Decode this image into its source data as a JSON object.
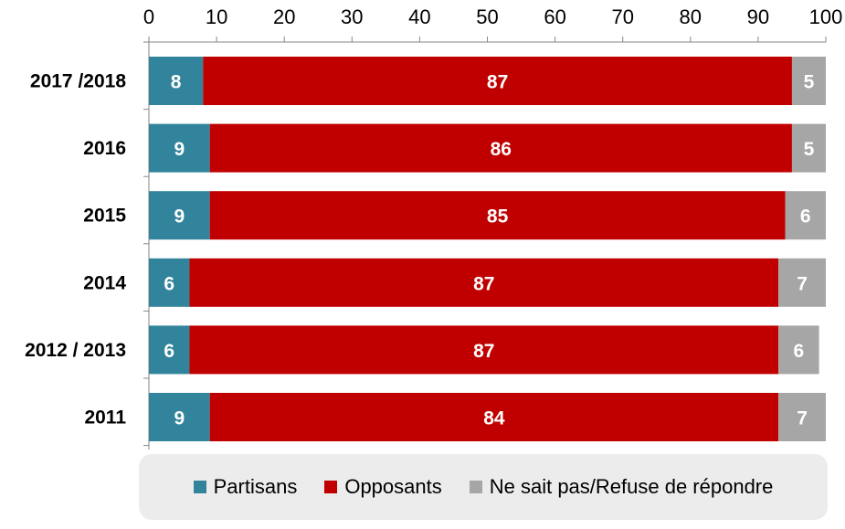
{
  "chart_data": {
    "type": "bar",
    "orientation": "horizontal",
    "stacked": true,
    "categories": [
      "2017 /2018",
      "2016",
      "2015",
      "2014",
      "2012 / 2013",
      "2011"
    ],
    "series": [
      {
        "name": "Partisans",
        "color": "#31849b",
        "values": [
          8,
          9,
          9,
          6,
          6,
          9
        ]
      },
      {
        "name": "Opposants",
        "color": "#c00000",
        "values": [
          87,
          86,
          85,
          87,
          87,
          84
        ]
      },
      {
        "name": "Ne sait pas/Refuse de répondre",
        "color": "#a6a6a6",
        "values": [
          5,
          5,
          6,
          7,
          6,
          7
        ]
      }
    ],
    "xlim": [
      0,
      100
    ],
    "xticks": [
      "0",
      "10",
      "20",
      "30",
      "40",
      "50",
      "60",
      "70",
      "80",
      "90",
      "100"
    ],
    "x_axis_position": "top",
    "legend_position": "bottom",
    "grid": false
  }
}
